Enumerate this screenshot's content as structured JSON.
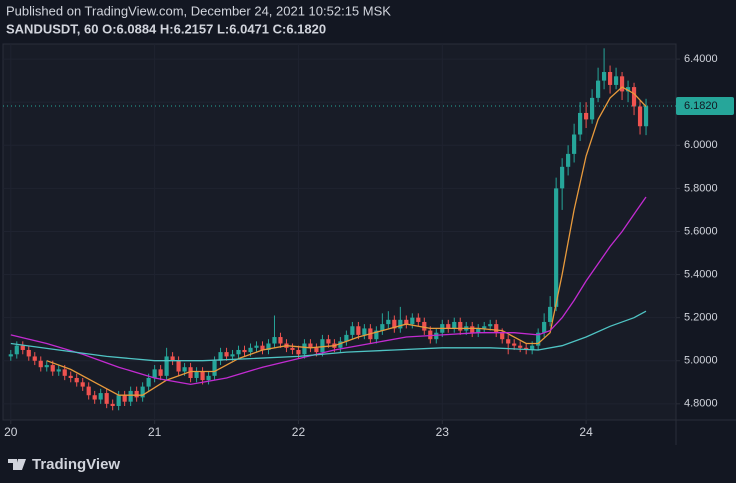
{
  "header": {
    "published": "Published on TradingView.com, December 24, 2021 10:52:15 MSK",
    "symbol_line": "SANDUSDT, 60  O:6.0884 H:6.2157 L:6.0471 C:6.1820"
  },
  "logo": "TradingView",
  "chart_data": {
    "type": "candlestick",
    "up_color": "#26a69a",
    "down_color": "#ef5350",
    "x": [
      0,
      1,
      2,
      3,
      4,
      5,
      6,
      7,
      8,
      9,
      10,
      11,
      12,
      13,
      14,
      15,
      16,
      17,
      18,
      19,
      20,
      21,
      22,
      23,
      24,
      25,
      26,
      27,
      28,
      29,
      30,
      31,
      32,
      33,
      34,
      35,
      36,
      37,
      38,
      39,
      40,
      41,
      42,
      43,
      44,
      45,
      46,
      47,
      48,
      49,
      50,
      51,
      52,
      53,
      54,
      55,
      56,
      57,
      58,
      59,
      60,
      61,
      62,
      63,
      64,
      65,
      66,
      67,
      68,
      69,
      70,
      71,
      72,
      73,
      74,
      75,
      76,
      77,
      78,
      79,
      80,
      81,
      82,
      83,
      84,
      85,
      86,
      87,
      88,
      89,
      90,
      91,
      92,
      93,
      94,
      95,
      96,
      97,
      98,
      99,
      100,
      101,
      102,
      103,
      104,
      105,
      106
    ],
    "candles": [
      [
        5.02,
        5.05,
        5.0,
        5.03
      ],
      [
        5.03,
        5.09,
        5.01,
        5.07
      ],
      [
        5.07,
        5.09,
        5.03,
        5.05
      ],
      [
        5.05,
        5.07,
        5.0,
        5.02
      ],
      [
        5.02,
        5.04,
        4.98,
        5.0
      ],
      [
        5.0,
        5.02,
        4.95,
        4.97
      ],
      [
        4.97,
        5.0,
        4.95,
        4.98
      ],
      [
        4.98,
        5.0,
        4.93,
        4.95
      ],
      [
        4.95,
        4.98,
        4.93,
        4.96
      ],
      [
        4.96,
        4.98,
        4.91,
        4.93
      ],
      [
        4.93,
        4.95,
        4.9,
        4.92
      ],
      [
        4.92,
        4.94,
        4.88,
        4.9
      ],
      [
        4.9,
        4.92,
        4.86,
        4.88
      ],
      [
        4.88,
        4.9,
        4.82,
        4.84
      ],
      [
        4.84,
        4.86,
        4.8,
        4.82
      ],
      [
        4.82,
        4.87,
        4.8,
        4.85
      ],
      [
        4.85,
        4.87,
        4.78,
        4.8
      ],
      [
        4.8,
        4.82,
        4.77,
        4.79
      ],
      [
        4.79,
        4.86,
        4.77,
        4.84
      ],
      [
        4.84,
        4.86,
        4.79,
        4.81
      ],
      [
        4.81,
        4.88,
        4.79,
        4.86
      ],
      [
        4.86,
        4.88,
        4.81,
        4.83
      ],
      [
        4.83,
        4.9,
        4.81,
        4.88
      ],
      [
        4.88,
        4.94,
        4.86,
        4.92
      ],
      [
        4.92,
        4.98,
        4.9,
        4.96
      ],
      [
        4.96,
        4.98,
        4.91,
        4.93
      ],
      [
        4.93,
        5.06,
        4.91,
        5.02
      ],
      [
        5.02,
        5.04,
        4.98,
        5.0
      ],
      [
        5.0,
        5.02,
        4.93,
        4.95
      ],
      [
        4.95,
        4.99,
        4.93,
        4.97
      ],
      [
        4.97,
        4.99,
        4.9,
        4.92
      ],
      [
        4.92,
        4.97,
        4.9,
        4.95
      ],
      [
        4.95,
        4.97,
        4.89,
        4.91
      ],
      [
        4.91,
        4.95,
        4.89,
        4.93
      ],
      [
        4.93,
        5.02,
        4.91,
        5.0
      ],
      [
        5.0,
        5.06,
        4.98,
        5.04
      ],
      [
        5.04,
        5.06,
        5.0,
        5.02
      ],
      [
        5.02,
        5.05,
        5.0,
        5.03
      ],
      [
        5.03,
        5.07,
        5.01,
        5.05
      ],
      [
        5.05,
        5.07,
        5.02,
        5.04
      ],
      [
        5.04,
        5.08,
        5.02,
        5.06
      ],
      [
        5.06,
        5.09,
        5.04,
        5.07
      ],
      [
        5.07,
        5.09,
        5.03,
        5.05
      ],
      [
        5.05,
        5.1,
        5.03,
        5.08
      ],
      [
        5.08,
        5.21,
        5.06,
        5.11
      ],
      [
        5.11,
        5.13,
        5.06,
        5.08
      ],
      [
        5.08,
        5.1,
        5.04,
        5.06
      ],
      [
        5.06,
        5.08,
        5.03,
        5.05
      ],
      [
        5.05,
        5.07,
        5.01,
        5.03
      ],
      [
        5.03,
        5.1,
        5.01,
        5.08
      ],
      [
        5.08,
        5.1,
        5.04,
        5.06
      ],
      [
        5.06,
        5.08,
        5.02,
        5.04
      ],
      [
        5.04,
        5.12,
        5.02,
        5.1
      ],
      [
        5.1,
        5.12,
        5.06,
        5.08
      ],
      [
        5.08,
        5.1,
        5.04,
        5.06
      ],
      [
        5.06,
        5.11,
        5.04,
        5.09
      ],
      [
        5.09,
        5.14,
        5.07,
        5.12
      ],
      [
        5.12,
        5.18,
        5.1,
        5.16
      ],
      [
        5.16,
        5.18,
        5.1,
        5.12
      ],
      [
        5.12,
        5.17,
        5.1,
        5.15
      ],
      [
        5.15,
        5.17,
        5.08,
        5.1
      ],
      [
        5.1,
        5.16,
        5.08,
        5.14
      ],
      [
        5.14,
        5.22,
        5.12,
        5.17
      ],
      [
        5.17,
        5.23,
        5.15,
        5.19
      ],
      [
        5.19,
        5.21,
        5.13,
        5.15
      ],
      [
        5.15,
        5.25,
        5.13,
        5.19
      ],
      [
        5.19,
        5.21,
        5.15,
        5.17
      ],
      [
        5.17,
        5.22,
        5.15,
        5.2
      ],
      [
        5.2,
        5.22,
        5.16,
        5.18
      ],
      [
        5.18,
        5.2,
        5.12,
        5.14
      ],
      [
        5.14,
        5.16,
        5.08,
        5.1
      ],
      [
        5.1,
        5.15,
        5.08,
        5.13
      ],
      [
        5.13,
        5.19,
        5.11,
        5.17
      ],
      [
        5.17,
        5.19,
        5.13,
        5.15
      ],
      [
        5.15,
        5.2,
        5.13,
        5.18
      ],
      [
        5.18,
        5.2,
        5.12,
        5.14
      ],
      [
        5.14,
        5.18,
        5.12,
        5.16
      ],
      [
        5.16,
        5.18,
        5.11,
        5.13
      ],
      [
        5.13,
        5.17,
        5.11,
        5.15
      ],
      [
        5.15,
        5.18,
        5.13,
        5.16
      ],
      [
        5.16,
        5.19,
        5.14,
        5.17
      ],
      [
        5.17,
        5.19,
        5.11,
        5.13
      ],
      [
        5.13,
        5.15,
        5.08,
        5.1
      ],
      [
        5.1,
        5.12,
        5.03,
        5.08
      ],
      [
        5.08,
        5.1,
        5.05,
        5.07
      ],
      [
        5.07,
        5.09,
        5.04,
        5.06
      ],
      [
        5.06,
        5.08,
        5.03,
        5.05
      ],
      [
        5.05,
        5.09,
        5.03,
        5.07
      ],
      [
        5.07,
        5.15,
        5.05,
        5.13
      ],
      [
        5.13,
        5.22,
        5.11,
        5.18
      ],
      [
        5.18,
        5.3,
        5.16,
        5.25
      ],
      [
        5.25,
        5.85,
        5.23,
        5.8
      ],
      [
        5.8,
        5.94,
        5.7,
        5.9
      ],
      [
        5.9,
        6.0,
        5.86,
        5.96
      ],
      [
        5.96,
        6.1,
        5.92,
        6.05
      ],
      [
        6.05,
        6.2,
        6.02,
        6.15
      ],
      [
        6.15,
        6.2,
        6.08,
        6.12
      ],
      [
        6.12,
        6.26,
        6.1,
        6.22
      ],
      [
        6.22,
        6.36,
        6.2,
        6.3
      ],
      [
        6.3,
        6.45,
        6.26,
        6.34
      ],
      [
        6.34,
        6.37,
        6.24,
        6.28
      ],
      [
        6.28,
        6.36,
        6.26,
        6.32
      ],
      [
        6.32,
        6.34,
        6.21,
        6.25
      ],
      [
        6.25,
        6.3,
        6.2,
        6.27
      ],
      [
        6.27,
        6.29,
        6.14,
        6.18
      ],
      [
        6.18,
        6.21,
        6.05,
        6.0884
      ],
      [
        6.0884,
        6.2157,
        6.0471,
        6.182
      ]
    ],
    "lines": [
      {
        "color": "#e89a3c",
        "x": [
          6,
          10,
          14,
          18,
          22,
          26,
          30,
          34,
          38,
          42,
          46,
          50,
          54,
          58,
          62,
          66,
          70,
          74,
          78,
          82,
          86,
          88,
          90,
          92,
          94,
          96,
          98,
          100,
          102,
          104,
          106
        ],
        "values": [
          5.0,
          4.96,
          4.9,
          4.84,
          4.84,
          4.91,
          4.95,
          4.95,
          5.01,
          5.05,
          5.07,
          5.06,
          5.07,
          5.11,
          5.14,
          5.17,
          5.15,
          5.15,
          5.15,
          5.14,
          5.08,
          5.08,
          5.13,
          5.4,
          5.7,
          5.95,
          6.12,
          6.22,
          6.27,
          6.24,
          6.18
        ]
      },
      {
        "color": "#c22bd1",
        "x": [
          0,
          6,
          12,
          18,
          24,
          30,
          36,
          42,
          48,
          54,
          60,
          66,
          72,
          78,
          84,
          88,
          90,
          92,
          94,
          96,
          98,
          100,
          102,
          104,
          106
        ],
        "values": [
          5.12,
          5.08,
          5.03,
          4.97,
          4.92,
          4.89,
          4.92,
          4.97,
          5.01,
          5.05,
          5.08,
          5.11,
          5.12,
          5.13,
          5.13,
          5.12,
          5.14,
          5.2,
          5.28,
          5.37,
          5.45,
          5.53,
          5.6,
          5.68,
          5.76
        ]
      },
      {
        "color": "#4fc4c4",
        "x": [
          0,
          8,
          16,
          24,
          32,
          40,
          48,
          56,
          64,
          72,
          80,
          88,
          92,
          96,
          100,
          104,
          106
        ],
        "values": [
          5.08,
          5.05,
          5.02,
          5.0,
          5.0,
          5.01,
          5.02,
          5.04,
          5.05,
          5.06,
          5.06,
          5.05,
          5.07,
          5.11,
          5.16,
          5.2,
          5.23
        ]
      }
    ],
    "last_price": {
      "value": 6.182,
      "label": "6.1820"
    },
    "xlim": [
      -1.3,
      111
    ],
    "ylim": [
      4.725,
      6.47
    ],
    "xticks": [
      {
        "value": 0,
        "label": "20"
      },
      {
        "value": 24,
        "label": "21"
      },
      {
        "value": 48,
        "label": "22"
      },
      {
        "value": 72,
        "label": "23"
      },
      {
        "value": 96,
        "label": "24"
      }
    ],
    "yticks": [
      {
        "value": 4.8,
        "label": "4.8000"
      },
      {
        "value": 5.0,
        "label": "5.0000"
      },
      {
        "value": 5.2,
        "label": "5.2000"
      },
      {
        "value": 5.4,
        "label": "5.4000"
      },
      {
        "value": 5.6,
        "label": "5.6000"
      },
      {
        "value": 5.8,
        "label": "5.8000"
      },
      {
        "value": 6.0,
        "label": "6.0000"
      },
      {
        "value": 6.2,
        "label": "6.2000"
      },
      {
        "value": 6.4,
        "label": "6.4000"
      }
    ]
  }
}
